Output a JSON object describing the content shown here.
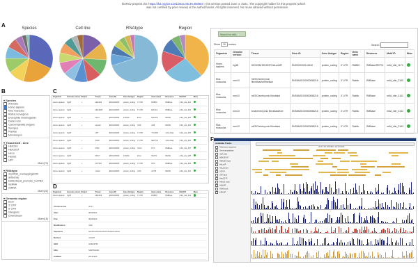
{
  "header": {
    "line1_prefix": "bioRxiv preprint doi:",
    "line1_doi": "https://doi.org/10.1101/2021.06.30.450564",
    "line1_suffix": "; this version posted June 4, 2021. The copyright holder for this preprint (which",
    "line2": "was not certified by peer review) is the author/funder. All rights reserved. No reuse allowed without permission."
  },
  "panels": {
    "a": "A",
    "b": "B",
    "c": "C",
    "d": "D",
    "e": "E",
    "f": "F"
  },
  "pies": [
    {
      "title": "Species",
      "colors": [
        "#5968b8",
        "#e8a33a",
        "#f3d25a",
        "#9dcb68",
        "#7bbbe0",
        "#d46b61",
        "#a97ab8",
        "#6f6f6f",
        "#86c3b0"
      ],
      "values": [
        32,
        22,
        11,
        10,
        8,
        7,
        5,
        3,
        2
      ]
    },
    {
      "title": "Cell line",
      "colors": [
        "#7b5fa8",
        "#e8b24c",
        "#6db76f",
        "#d85f5f",
        "#5a8fd0",
        "#8fc0e3",
        "#e080b4",
        "#c9d96d",
        "#f2a060",
        "#4f9a96",
        "#b2b2b2",
        "#9e6a3b"
      ],
      "values": [
        14,
        12,
        11,
        10,
        9,
        8,
        8,
        7,
        7,
        6,
        4,
        4
      ]
    },
    {
      "title": "RNAtype",
      "colors": [
        "#86b9d6",
        "#6aa7d8",
        "#4d78b0",
        "#c5cf58",
        "#8fbe6a",
        "#d8b35a",
        "#c27bb0"
      ],
      "values": [
        70,
        8,
        6,
        5,
        4,
        4,
        3
      ]
    },
    {
      "title": "Region",
      "colors": [
        "#f0b44a",
        "#7fbedc",
        "#d85d66",
        "#4c7bb5",
        "#7db56f",
        "#b48ac2"
      ],
      "values": [
        38,
        27,
        15,
        10,
        6,
        4
      ]
    }
  ],
  "panel_b": {
    "species": {
      "header": "Species",
      "items": [
        "Animalia",
        "Homo sapiens",
        "Mus musculus",
        "Rattus norvegicus",
        "Drosophila melanogaster",
        "Danio rerio",
        "Caenorhabditis elegans",
        "Xenopus",
        "Plantae",
        "Monokaryon"
      ]
    },
    "tissue": {
      "header": "Tissue/Cell - Line",
      "items": [
        "HEK293",
        "HEK293T",
        "HeLa",
        "HepG2",
        "U87"
      ],
      "more": "More(73)"
    },
    "rnatype": {
      "header": "RNAtype",
      "items": [
        "3'pcDNA_overlappingESTs",
        "antisense",
        "bidirectional_promoter_lncRNA",
        "lncRNA",
        "miRNA"
      ],
      "more": "More(20)"
    },
    "region": {
      "header": "Genomic region",
      "items": [
        "Exon",
        "3' UTR",
        "5' UTR",
        "Intergenic",
        "Downstream"
      ],
      "more": "More(15)"
    }
  },
  "panel_c": {
    "headers": [
      "Organism",
      "Genome version",
      "Strand",
      "Tissue",
      "Gene ID",
      "Gene biotype",
      "Region",
      "Gene name",
      "Resource",
      "Motif ID",
      "More"
    ],
    "rows": [
      [
        "Homo sapiens",
        "hg38",
        "+",
        "HEK293",
        "ENSG00000",
        "protein_coding",
        "3' UTR",
        "RAB5C",
        "RMBase",
        "m6A_site_001",
        ""
      ],
      [
        "Homo sapiens",
        "hg38",
        "-",
        "HEK293T",
        "ENSG00000",
        "protein_coding",
        "5' UTR",
        "EIF4G1",
        "RMBase",
        "m6A_site_002",
        ""
      ],
      [
        "Homo sapiens",
        "hg38",
        "+",
        "HeLa",
        "ENSG00000",
        "lncRNA",
        "Exon",
        "MALAT1",
        "REPIC",
        "m6A_site_003",
        ""
      ],
      [
        "Homo sapiens",
        "hg38",
        "+",
        "HepG2",
        "ENSG00000",
        "protein_coding",
        "CDS",
        "ALB",
        "REPIC",
        "m6A_site_004",
        ""
      ],
      [
        "Homo sapiens",
        "hg38",
        "-",
        "U87",
        "ENSG00000",
        "protein_coding",
        "3' UTR",
        "YTHDF2",
        "m6A-Atlas",
        "m6A_site_005",
        ""
      ],
      [
        "Homo sapiens",
        "hg38",
        "+",
        "A549",
        "ENSG00000",
        "protein_coding",
        "3' UTR",
        "METTL3",
        "m6A-Atlas",
        "m6A_site_006",
        ""
      ],
      [
        "Homo sapiens",
        "hg38",
        "+",
        "K562",
        "ENSG00000",
        "protein_coding",
        "Intron",
        "FTO",
        "RMBase",
        "m6A_site_007",
        ""
      ],
      [
        "Homo sapiens",
        "hg38",
        "-",
        "MCF7",
        "ENSG00000",
        "lncRNA",
        "Exon",
        "NEAT1",
        "REPIC",
        "m6A_site_008",
        ""
      ],
      [
        "Homo sapiens",
        "hg38",
        "+",
        "HCT116",
        "ENSG00000",
        "protein_coding",
        "3' UTR",
        "MYC",
        "RMBase",
        "m6A_site_009",
        ""
      ],
      [
        "Homo sapiens",
        "hg38",
        "+",
        "Jurkat",
        "ENSG00000",
        "protein_coding",
        "CDS",
        "ACTB",
        "REPIC",
        "m6A_site_010",
        ""
      ]
    ]
  },
  "panel_d": {
    "headers": [
      "Organism",
      "Genome version",
      "Strand",
      "Tissue",
      "Gene ID",
      "Gene biotype",
      "Region",
      "Gene name",
      "Resource",
      "Motif ID",
      "More"
    ],
    "row": [
      "Homo sapiens",
      "hg38",
      "+",
      "HEK293",
      "ENSG00000",
      "protein_coding",
      "3' UTR",
      "RAB5C",
      "RMBase",
      "m6A_site_001",
      ""
    ],
    "details": [
      [
        "Chromosome",
        "chr17"
      ],
      [
        "Start",
        "40165241"
      ],
      [
        "End",
        "40165242"
      ],
      [
        "Modification",
        "m6A"
      ],
      [
        "Sequence",
        "GGACUGAAGGACUUGGACUAGG"
      ],
      [
        "Method",
        "miCLIP"
      ],
      [
        "GEO",
        "GSE63753"
      ],
      [
        "SRA",
        "SRP051000"
      ],
      [
        "PubMed",
        "26121403"
      ]
    ]
  },
  "panel_e": {
    "back_button": "Search for m6A",
    "show_label": "Show",
    "show_value": "10",
    "entries_label": "entries",
    "search_label": "Search:",
    "headers": [
      "Organism",
      "Genome version",
      "Tissue",
      "Gene ID",
      "Gene biotype",
      "Region",
      "Gene name",
      "Resource",
      "Motif ID",
      "More"
    ],
    "rows": [
      [
        "Homo sapiens",
        "hg38",
        "HEK293/HEK293T/HeLa/U87",
        "ENSG00000141510",
        "protein_coding",
        "3' UTR",
        "RAB5C",
        "RMBase/REPIC",
        "m6A_site_1174"
      ],
      [
        "Mus musculus",
        "mm10",
        "mESC/embryonic fibroblast/cerebellum",
        "ENSMUSG00000058216",
        "protein_coding",
        "3' UTR",
        "Rab5c",
        "RMBase",
        "m6A_site_2160"
      ],
      [
        "Mus musculus",
        "mm10",
        "mESC/embryonic fibroblast",
        "ENSMUSG00000058216",
        "protein_coding",
        "3' UTR",
        "Rab5c",
        "RMBase",
        "m6A_site_2161"
      ],
      [
        "Mus musculus",
        "mm10",
        "brain/embryonic fibroblast/liver",
        "ENSMUSG00000058216",
        "protein_coding",
        "3' UTR",
        "Rab5c",
        "RMBase",
        "m6A_site_2162"
      ],
      [
        "Mus musculus",
        "mm10",
        "mESC/embryonic fibroblast",
        "ENSMUSG00000058216",
        "protein_coding",
        "3' UTR",
        "Rab5c",
        "RMBase",
        "m6A_site_2163"
      ]
    ]
  },
  "panel_f": {
    "sidebar_title": "Available Tracks",
    "tracks": [
      "Reference sequence",
      "Gene annotations",
      "m6A sites",
      "HEK293 IP",
      "HEK293 input",
      "HeLa IP",
      "HeLa input",
      "U87 IP",
      "U87 input",
      "HepG2 IP",
      "HepG2 input",
      "A549 IP",
      "A549 input",
      "K562 IP"
    ],
    "coordinate": "chr17:40,165,000..40,170,000"
  }
}
